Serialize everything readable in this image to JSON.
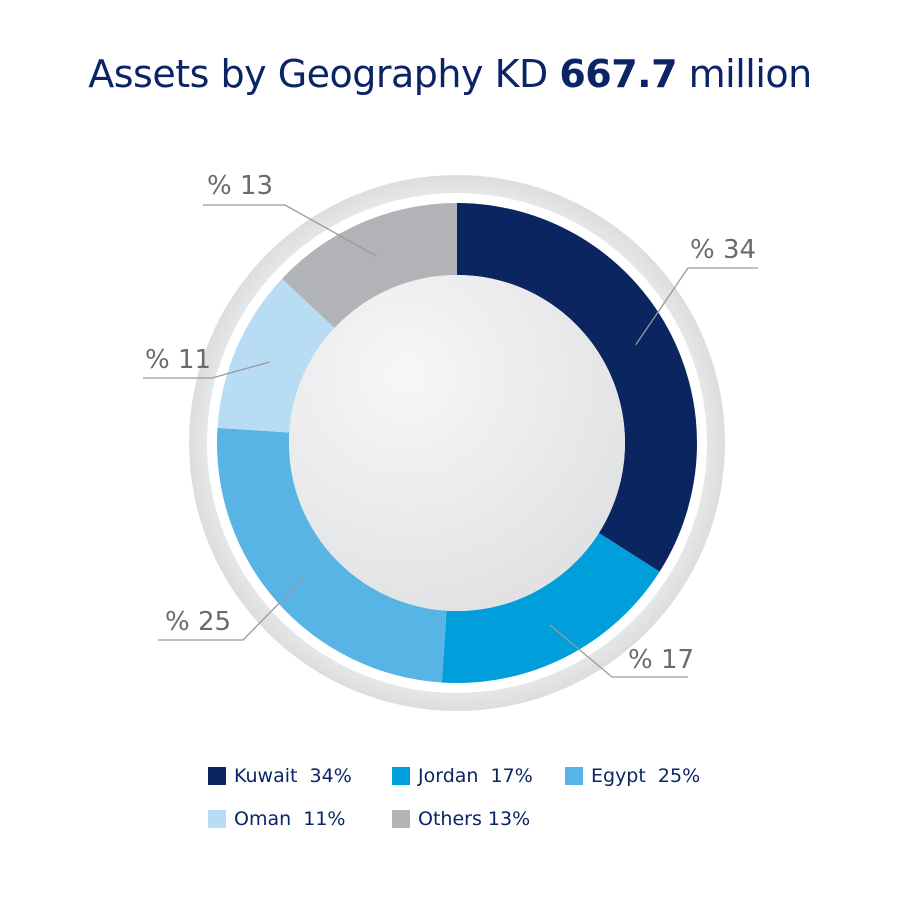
{
  "title": {
    "prefix": "Assets by Geography KD ",
    "value": "667.7",
    "suffix": " million"
  },
  "colors": {
    "title": "#0a2466",
    "label": "#6b6b6b",
    "leader": "#9a9a9a"
  },
  "chart_data": {
    "type": "pie",
    "donut": true,
    "categories": [
      "Kuwait",
      "Jordan",
      "Egypt",
      "Oman",
      "Others"
    ],
    "values": [
      34,
      17,
      25,
      11,
      13
    ],
    "colors": [
      "#0a2560",
      "#009fdb",
      "#59b4e6",
      "#b9dcf5",
      "#b1b3b6"
    ],
    "data_labels": [
      "% 34",
      "% 17",
      "% 25",
      "% 11",
      "% 13"
    ],
    "legend": {
      "placement": "bottom",
      "entries": [
        "Kuwait  34%",
        "Jordan  17%",
        "Egypt  25%",
        "Oman  11%",
        "Others 13%"
      ]
    }
  }
}
